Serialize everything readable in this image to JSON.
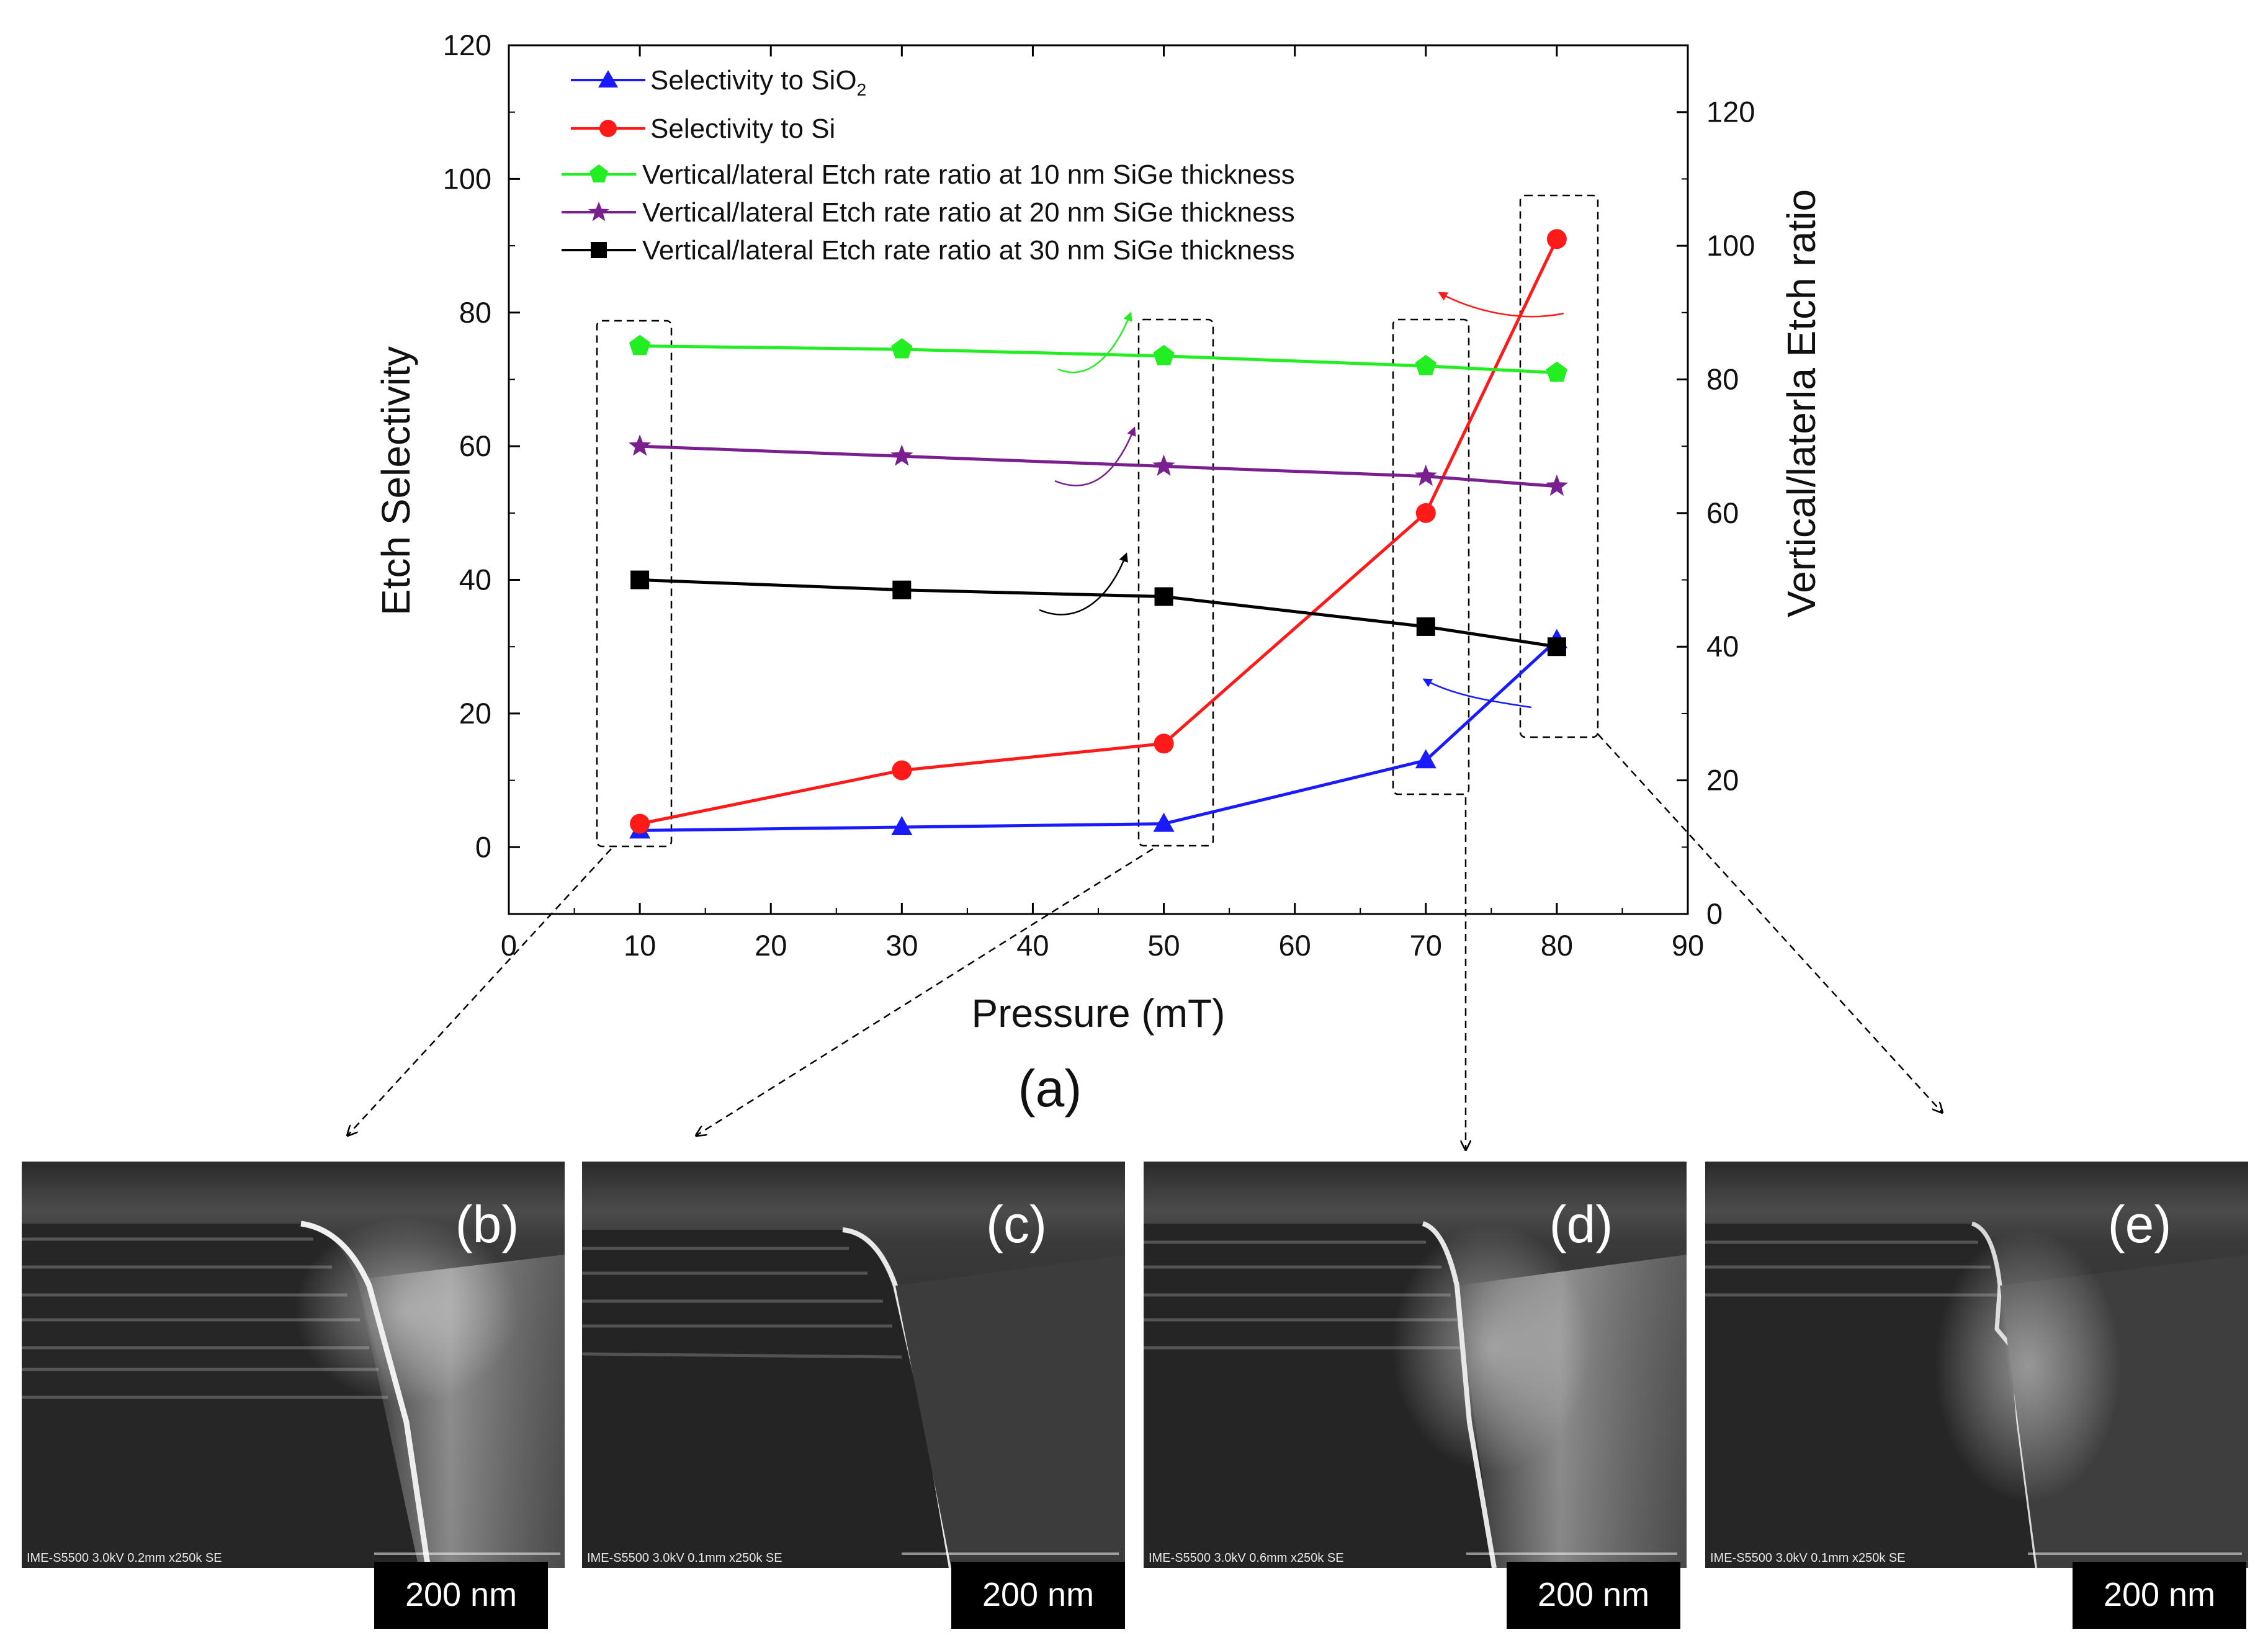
{
  "chart_data": {
    "type": "line",
    "panel_label": "(a)",
    "xlabel": "Pressure (mT)",
    "ylabel": "Etch Selectivity",
    "ylabel_right": "Vertical/laterla Etch ratio",
    "xlim": [
      0,
      90
    ],
    "ylim": [
      -10,
      120
    ],
    "ylim_right": [
      0,
      130
    ],
    "x_ticks": [
      "0",
      "10",
      "20",
      "30",
      "40",
      "50",
      "60",
      "70",
      "80",
      "90"
    ],
    "y_ticks": [
      "0",
      "20",
      "40",
      "60",
      "80",
      "100",
      "120"
    ],
    "y_ticks_right": [
      "0",
      "20",
      "40",
      "60",
      "80",
      "100",
      "120"
    ],
    "series": [
      {
        "name": "Selectivity to SiO",
        "subscript": "2",
        "marker": "triangle",
        "color": "#1a1aff",
        "axis": "left",
        "x": [
          10,
          30,
          50,
          70,
          80
        ],
        "values": [
          2.5,
          3,
          3.5,
          13,
          31
        ]
      },
      {
        "name": "Selectivity to Si",
        "marker": "circle",
        "color": "#ff1a1a",
        "axis": "left",
        "x": [
          10,
          30,
          50,
          70,
          80
        ],
        "values": [
          3.5,
          11.5,
          15.5,
          50,
          91
        ]
      },
      {
        "name": "Vertical/lateral Etch rate ratio at 10 nm SiGe  thickness",
        "marker": "pentagon",
        "color": "#22ee22",
        "axis": "left",
        "x": [
          10,
          30,
          50,
          70,
          80
        ],
        "values": [
          75,
          74.5,
          73.5,
          72,
          71
        ]
      },
      {
        "name": "Vertical/lateral Etch rate ratio at 20 nm SiGe  thickness",
        "marker": "star",
        "color": "#7a1f8f",
        "axis": "left",
        "x": [
          10,
          30,
          50,
          70,
          80
        ],
        "values": [
          60,
          58.5,
          57,
          55.5,
          54
        ]
      },
      {
        "name": "Vertical/lateral Etch rate ratio at 30 nm SiGe  thickness",
        "marker": "square",
        "color": "#000000",
        "axis": "left",
        "x": [
          10,
          30,
          50,
          70,
          80
        ],
        "values": [
          40,
          38.5,
          37.5,
          33,
          30
        ]
      }
    ],
    "highlighted_pressures": [
      10,
      50,
      70,
      80
    ]
  },
  "sem_panels": [
    {
      "label": "(b)",
      "scale_bar": "200 nm",
      "caption": "IME-S5500 3.0kV 0.2mm x250k SE"
    },
    {
      "label": "(c)",
      "scale_bar": "200 nm",
      "caption": "IME-S5500 3.0kV 0.1mm x250k SE"
    },
    {
      "label": "(d)",
      "scale_bar": "200 nm",
      "caption": "IME-S5500 3.0kV 0.6mm x250k SE"
    },
    {
      "label": "(e)",
      "scale_bar": "200 nm",
      "caption": "IME-S5500 3.0kV 0.1mm x250k SE"
    }
  ],
  "colors": {
    "arrow_red": "#ff1a1a",
    "arrow_green": "#22ee22",
    "arrow_purple": "#7a1f8f",
    "arrow_black": "#000000",
    "arrow_blue": "#1a1aff"
  }
}
